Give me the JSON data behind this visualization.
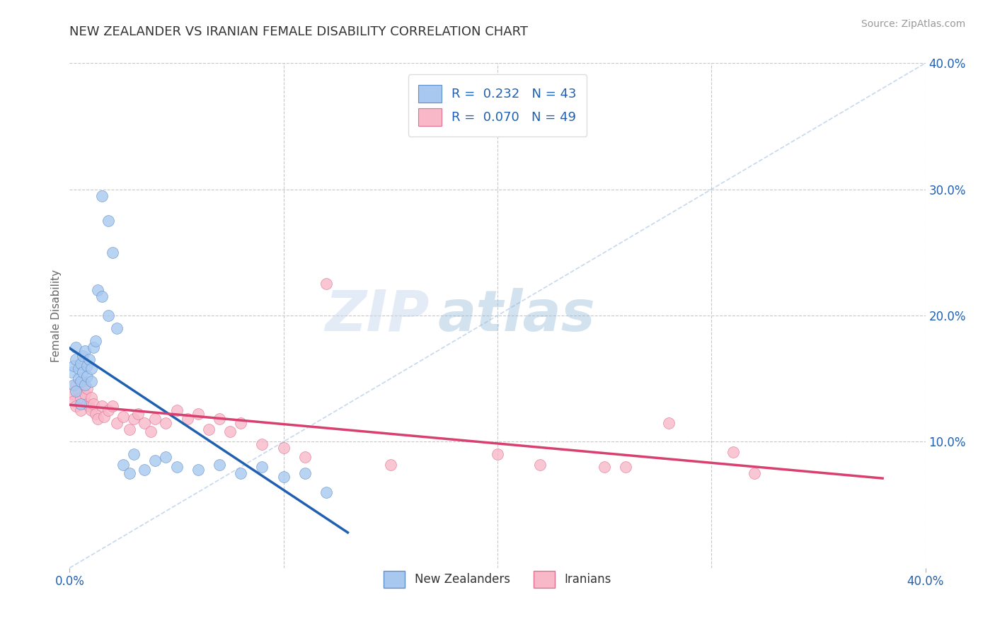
{
  "title": "NEW ZEALANDER VS IRANIAN FEMALE DISABILITY CORRELATION CHART",
  "source": "Source: ZipAtlas.com",
  "ylabel": "Female Disability",
  "xlim": [
    0.0,
    0.4
  ],
  "ylim": [
    0.0,
    0.4
  ],
  "y_ticks_right": [
    0.1,
    0.2,
    0.3,
    0.4
  ],
  "y_tick_labels_right": [
    "10.0%",
    "20.0%",
    "30.0%",
    "40.0%"
  ],
  "background_color": "#ffffff",
  "grid_color": "#c8c8c8",
  "nz_color": "#a8c8f0",
  "nz_edge_color": "#6090c8",
  "iran_color": "#f8b8c8",
  "iran_edge_color": "#e07090",
  "nz_R": 0.232,
  "nz_N": 43,
  "iran_R": 0.07,
  "iran_N": 49,
  "nz_line_color": "#2060b0",
  "iran_line_color": "#d84070",
  "legend_R_color": "#2060b0",
  "nz_x": [
    0.001,
    0.002,
    0.002,
    0.003,
    0.003,
    0.003,
    0.004,
    0.004,
    0.005,
    0.005,
    0.005,
    0.006,
    0.006,
    0.007,
    0.007,
    0.008,
    0.008,
    0.009,
    0.01,
    0.01,
    0.011,
    0.012,
    0.013,
    0.015,
    0.018,
    0.02,
    0.025,
    0.03,
    0.035,
    0.04,
    0.045,
    0.05,
    0.06,
    0.07,
    0.08,
    0.09,
    0.1,
    0.11,
    0.12,
    0.015,
    0.018,
    0.022,
    0.028
  ],
  "nz_y": [
    0.155,
    0.16,
    0.145,
    0.165,
    0.14,
    0.175,
    0.15,
    0.158,
    0.148,
    0.162,
    0.13,
    0.155,
    0.168,
    0.145,
    0.172,
    0.16,
    0.152,
    0.165,
    0.148,
    0.158,
    0.175,
    0.18,
    0.22,
    0.295,
    0.275,
    0.25,
    0.082,
    0.09,
    0.078,
    0.085,
    0.088,
    0.08,
    0.078,
    0.082,
    0.075,
    0.08,
    0.072,
    0.075,
    0.06,
    0.215,
    0.2,
    0.19,
    0.075
  ],
  "iran_x": [
    0.001,
    0.002,
    0.003,
    0.003,
    0.004,
    0.005,
    0.005,
    0.006,
    0.007,
    0.008,
    0.008,
    0.009,
    0.01,
    0.01,
    0.011,
    0.012,
    0.013,
    0.015,
    0.016,
    0.018,
    0.02,
    0.022,
    0.025,
    0.028,
    0.03,
    0.032,
    0.035,
    0.038,
    0.04,
    0.045,
    0.05,
    0.055,
    0.06,
    0.065,
    0.07,
    0.075,
    0.08,
    0.09,
    0.1,
    0.11,
    0.12,
    0.15,
    0.2,
    0.22,
    0.25,
    0.26,
    0.28,
    0.31,
    0.32
  ],
  "iran_y": [
    0.138,
    0.132,
    0.145,
    0.128,
    0.14,
    0.135,
    0.125,
    0.148,
    0.138,
    0.142,
    0.13,
    0.128,
    0.135,
    0.125,
    0.13,
    0.122,
    0.118,
    0.128,
    0.12,
    0.125,
    0.128,
    0.115,
    0.12,
    0.11,
    0.118,
    0.122,
    0.115,
    0.108,
    0.118,
    0.115,
    0.125,
    0.118,
    0.122,
    0.11,
    0.118,
    0.108,
    0.115,
    0.098,
    0.095,
    0.088,
    0.225,
    0.082,
    0.09,
    0.082,
    0.08,
    0.08,
    0.115,
    0.092,
    0.075
  ],
  "watermark_zip": "ZIP",
  "watermark_atlas": "atlas",
  "marker_size": 130
}
